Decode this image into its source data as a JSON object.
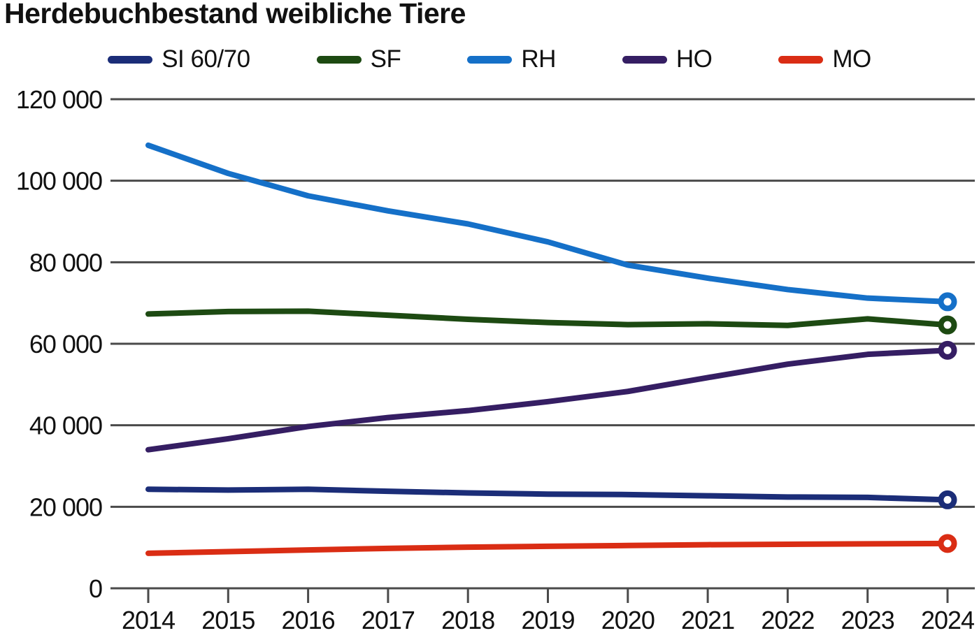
{
  "chart_data": {
    "type": "line",
    "title": "Herdebuchbestand weibliche Tiere",
    "x": [
      2014,
      2015,
      2016,
      2017,
      2018,
      2019,
      2020,
      2021,
      2022,
      2023,
      2024
    ],
    "xtick_labels": [
      "2014",
      "2015",
      "2016",
      "2017",
      "2018",
      "2019",
      "2020",
      "2021",
      "2022",
      "2023",
      "2024"
    ],
    "series": [
      {
        "name": "SI 60/70",
        "color": "#1b2d78",
        "values": [
          24300,
          24100,
          24300,
          23800,
          23400,
          23100,
          23000,
          22700,
          22400,
          22300,
          21700
        ]
      },
      {
        "name": "SF",
        "color": "#1d4a12",
        "values": [
          67300,
          67900,
          68000,
          67000,
          66000,
          65200,
          64700,
          64900,
          64500,
          66100,
          64600
        ]
      },
      {
        "name": "RH",
        "color": "#1570c8",
        "values": [
          108700,
          101800,
          96300,
          92600,
          89400,
          85000,
          79300,
          76100,
          73300,
          71200,
          70300
        ]
      },
      {
        "name": "HO",
        "color": "#351e63",
        "values": [
          34000,
          36700,
          39700,
          41900,
          43600,
          45800,
          48300,
          51700,
          55000,
          57400,
          58400
        ]
      },
      {
        "name": "MO",
        "color": "#da2d14",
        "values": [
          8600,
          9000,
          9400,
          9800,
          10100,
          10300,
          10500,
          10700,
          10800,
          10900,
          11000
        ]
      }
    ],
    "ylim": [
      0,
      120000
    ],
    "ytick_step": 20000,
    "ytick_labels": [
      "0",
      "20 000",
      "40 000",
      "60 000",
      "80 000",
      "100 000",
      "120 000"
    ],
    "grid": "horizontal",
    "legend_position": "top",
    "end_markers": "open-circle"
  },
  "colors": {
    "background": "#ffffff",
    "grid": "#4a4a4a",
    "text": "#111111"
  }
}
